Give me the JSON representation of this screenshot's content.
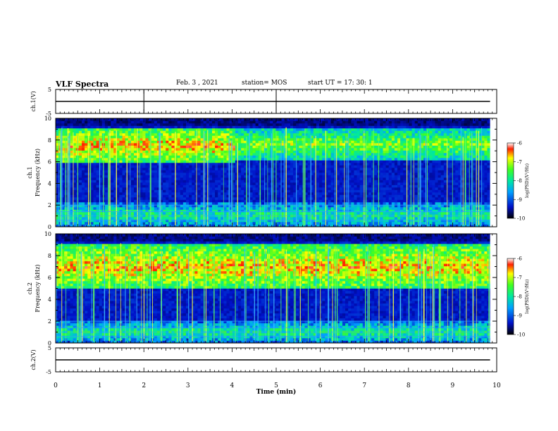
{
  "header": {
    "title": "VLF Spectra",
    "date": "Feb. 3  , 2021",
    "station": "station= MOS",
    "start": "start  UT  =   17: 30: 1"
  },
  "chart_data": [
    {
      "type": "line",
      "panel": "ch1-voltage",
      "ylabel": "ch.1(V)",
      "ylim": [
        -5,
        5
      ],
      "yticks": [
        "5",
        "-5"
      ],
      "x": [
        0,
        10
      ],
      "values": [
        0,
        0
      ]
    },
    {
      "type": "heatmap",
      "panel": "ch1-spectrogram",
      "ylabel": "ch.1\nFrequency  (kHz)",
      "ylim": [
        0,
        10
      ],
      "yticks": [
        "0",
        "2",
        "4",
        "6",
        "8",
        "10"
      ],
      "xlim": [
        0,
        10
      ],
      "bands": [
        {
          "x": [
            0,
            4.05
          ],
          "y": [
            5.8,
            9.1
          ],
          "intensity": "high"
        },
        {
          "x": [
            4.05,
            9.85
          ],
          "y": [
            6.2,
            9.0
          ],
          "intensity": "medium"
        },
        {
          "x": [
            0,
            9.85
          ],
          "y": [
            0,
            2.2
          ],
          "intensity": "low"
        }
      ],
      "colorbar": {
        "label": "log(PSD)(V²/Hz)",
        "ticks": [
          "-6",
          "-7",
          "-8",
          "-9",
          "-10"
        ],
        "range": [
          -10,
          -6
        ]
      }
    },
    {
      "type": "heatmap",
      "panel": "ch2-spectrogram",
      "ylabel": "ch.2\nFrequency  (kHz)",
      "ylim": [
        0,
        10
      ],
      "yticks": [
        "0",
        "2",
        "4",
        "6",
        "8",
        "10"
      ],
      "xlim": [
        0,
        10
      ],
      "bands": [
        {
          "x": [
            0,
            9.85
          ],
          "y": [
            5.0,
            9.0
          ],
          "intensity": "high"
        },
        {
          "x": [
            0,
            9.85
          ],
          "y": [
            0,
            2.0
          ],
          "intensity": "low"
        }
      ],
      "colorbar": {
        "label": "log(PSD)(V²/Hz)",
        "ticks": [
          "-6",
          "-7",
          "-8",
          "-9",
          "-10"
        ],
        "range": [
          -10,
          -6
        ]
      }
    },
    {
      "type": "line",
      "panel": "ch2-voltage",
      "ylabel": "ch.2(V)",
      "ylim": [
        -5,
        5
      ],
      "yticks": [
        "5",
        "-5"
      ],
      "x": [
        0,
        10
      ],
      "values": [
        0,
        0
      ]
    }
  ],
  "xaxis": {
    "label": "Time  (min)",
    "ticks": [
      "0",
      "1",
      "2",
      "3",
      "4",
      "5",
      "6",
      "7",
      "8",
      "9",
      "10"
    ],
    "xlim": [
      0,
      10
    ]
  }
}
